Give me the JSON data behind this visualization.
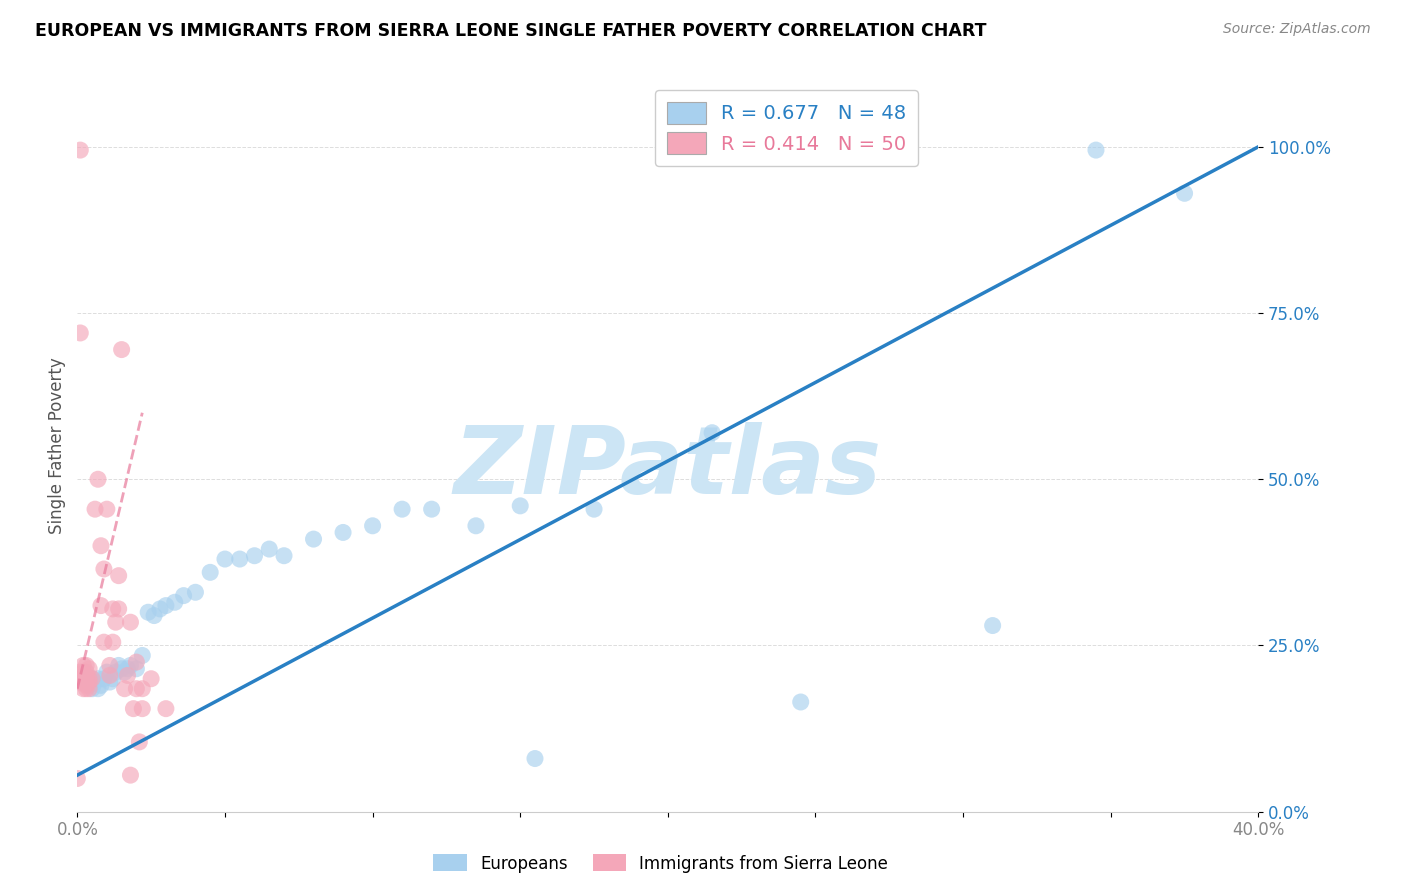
{
  "title": "EUROPEAN VS IMMIGRANTS FROM SIERRA LEONE SINGLE FATHER POVERTY CORRELATION CHART",
  "source": "Source: ZipAtlas.com",
  "ylabel": "Single Father Poverty",
  "xlim": [
    0.0,
    0.4
  ],
  "ylim": [
    0.0,
    1.1
  ],
  "yticks": [
    0.0,
    0.25,
    0.5,
    0.75,
    1.0
  ],
  "ytick_labels": [
    "0.0%",
    "25.0%",
    "50.0%",
    "75.0%",
    "100.0%"
  ],
  "xtick_positions": [
    0.0,
    0.05,
    0.1,
    0.15,
    0.2,
    0.25,
    0.3,
    0.35,
    0.4
  ],
  "xtick_labels": [
    "0.0%",
    "",
    "",
    "",
    "",
    "",
    "",
    "",
    "40.0%"
  ],
  "R_blue": 0.677,
  "N_blue": 48,
  "R_pink": 0.414,
  "N_pink": 50,
  "blue_color": "#a8d0ee",
  "pink_color": "#f4a7b9",
  "blue_line_color": "#2980c4",
  "pink_line_color": "#e8799a",
  "watermark": "ZIPatlas",
  "watermark_color": "#cce5f5",
  "blue_scatter": [
    [
      0.002,
      0.195
    ],
    [
      0.003,
      0.2
    ],
    [
      0.004,
      0.19
    ],
    [
      0.005,
      0.2
    ],
    [
      0.005,
      0.185
    ],
    [
      0.006,
      0.195
    ],
    [
      0.007,
      0.2
    ],
    [
      0.007,
      0.185
    ],
    [
      0.008,
      0.19
    ],
    [
      0.009,
      0.2
    ],
    [
      0.01,
      0.21
    ],
    [
      0.011,
      0.195
    ],
    [
      0.012,
      0.2
    ],
    [
      0.013,
      0.21
    ],
    [
      0.014,
      0.22
    ],
    [
      0.015,
      0.215
    ],
    [
      0.016,
      0.21
    ],
    [
      0.017,
      0.215
    ],
    [
      0.018,
      0.22
    ],
    [
      0.02,
      0.215
    ],
    [
      0.022,
      0.235
    ],
    [
      0.024,
      0.3
    ],
    [
      0.026,
      0.295
    ],
    [
      0.028,
      0.305
    ],
    [
      0.03,
      0.31
    ],
    [
      0.033,
      0.315
    ],
    [
      0.036,
      0.325
    ],
    [
      0.04,
      0.33
    ],
    [
      0.045,
      0.36
    ],
    [
      0.05,
      0.38
    ],
    [
      0.055,
      0.38
    ],
    [
      0.06,
      0.385
    ],
    [
      0.065,
      0.395
    ],
    [
      0.07,
      0.385
    ],
    [
      0.08,
      0.41
    ],
    [
      0.09,
      0.42
    ],
    [
      0.1,
      0.43
    ],
    [
      0.11,
      0.455
    ],
    [
      0.12,
      0.455
    ],
    [
      0.135,
      0.43
    ],
    [
      0.15,
      0.46
    ],
    [
      0.155,
      0.08
    ],
    [
      0.175,
      0.455
    ],
    [
      0.215,
      0.57
    ],
    [
      0.245,
      0.165
    ],
    [
      0.31,
      0.28
    ],
    [
      0.345,
      0.995
    ],
    [
      0.375,
      0.93
    ]
  ],
  "pink_scatter": [
    [
      0.001,
      0.195
    ],
    [
      0.001,
      0.2
    ],
    [
      0.001,
      0.21
    ],
    [
      0.002,
      0.185
    ],
    [
      0.002,
      0.195
    ],
    [
      0.002,
      0.2
    ],
    [
      0.002,
      0.21
    ],
    [
      0.002,
      0.22
    ],
    [
      0.002,
      0.195
    ],
    [
      0.003,
      0.19
    ],
    [
      0.003,
      0.2
    ],
    [
      0.003,
      0.205
    ],
    [
      0.003,
      0.21
    ],
    [
      0.003,
      0.22
    ],
    [
      0.003,
      0.185
    ],
    [
      0.004,
      0.195
    ],
    [
      0.004,
      0.2
    ],
    [
      0.004,
      0.215
    ],
    [
      0.004,
      0.185
    ],
    [
      0.005,
      0.2
    ],
    [
      0.006,
      0.455
    ],
    [
      0.007,
      0.5
    ],
    [
      0.008,
      0.31
    ],
    [
      0.008,
      0.4
    ],
    [
      0.009,
      0.255
    ],
    [
      0.009,
      0.365
    ],
    [
      0.01,
      0.455
    ],
    [
      0.011,
      0.22
    ],
    [
      0.011,
      0.205
    ],
    [
      0.012,
      0.305
    ],
    [
      0.012,
      0.255
    ],
    [
      0.013,
      0.285
    ],
    [
      0.014,
      0.355
    ],
    [
      0.014,
      0.305
    ],
    [
      0.015,
      0.695
    ],
    [
      0.016,
      0.185
    ],
    [
      0.017,
      0.205
    ],
    [
      0.018,
      0.285
    ],
    [
      0.018,
      0.055
    ],
    [
      0.019,
      0.155
    ],
    [
      0.02,
      0.225
    ],
    [
      0.02,
      0.185
    ],
    [
      0.021,
      0.105
    ],
    [
      0.022,
      0.185
    ],
    [
      0.022,
      0.155
    ],
    [
      0.025,
      0.2
    ],
    [
      0.03,
      0.155
    ],
    [
      0.001,
      0.995
    ],
    [
      0.001,
      0.72
    ],
    [
      0.0,
      0.05
    ]
  ],
  "blue_line_x": [
    0.0,
    0.4
  ],
  "blue_line_y": [
    0.055,
    1.0
  ],
  "pink_line_x": [
    0.0,
    0.022
  ],
  "pink_line_y": [
    0.185,
    0.6
  ]
}
